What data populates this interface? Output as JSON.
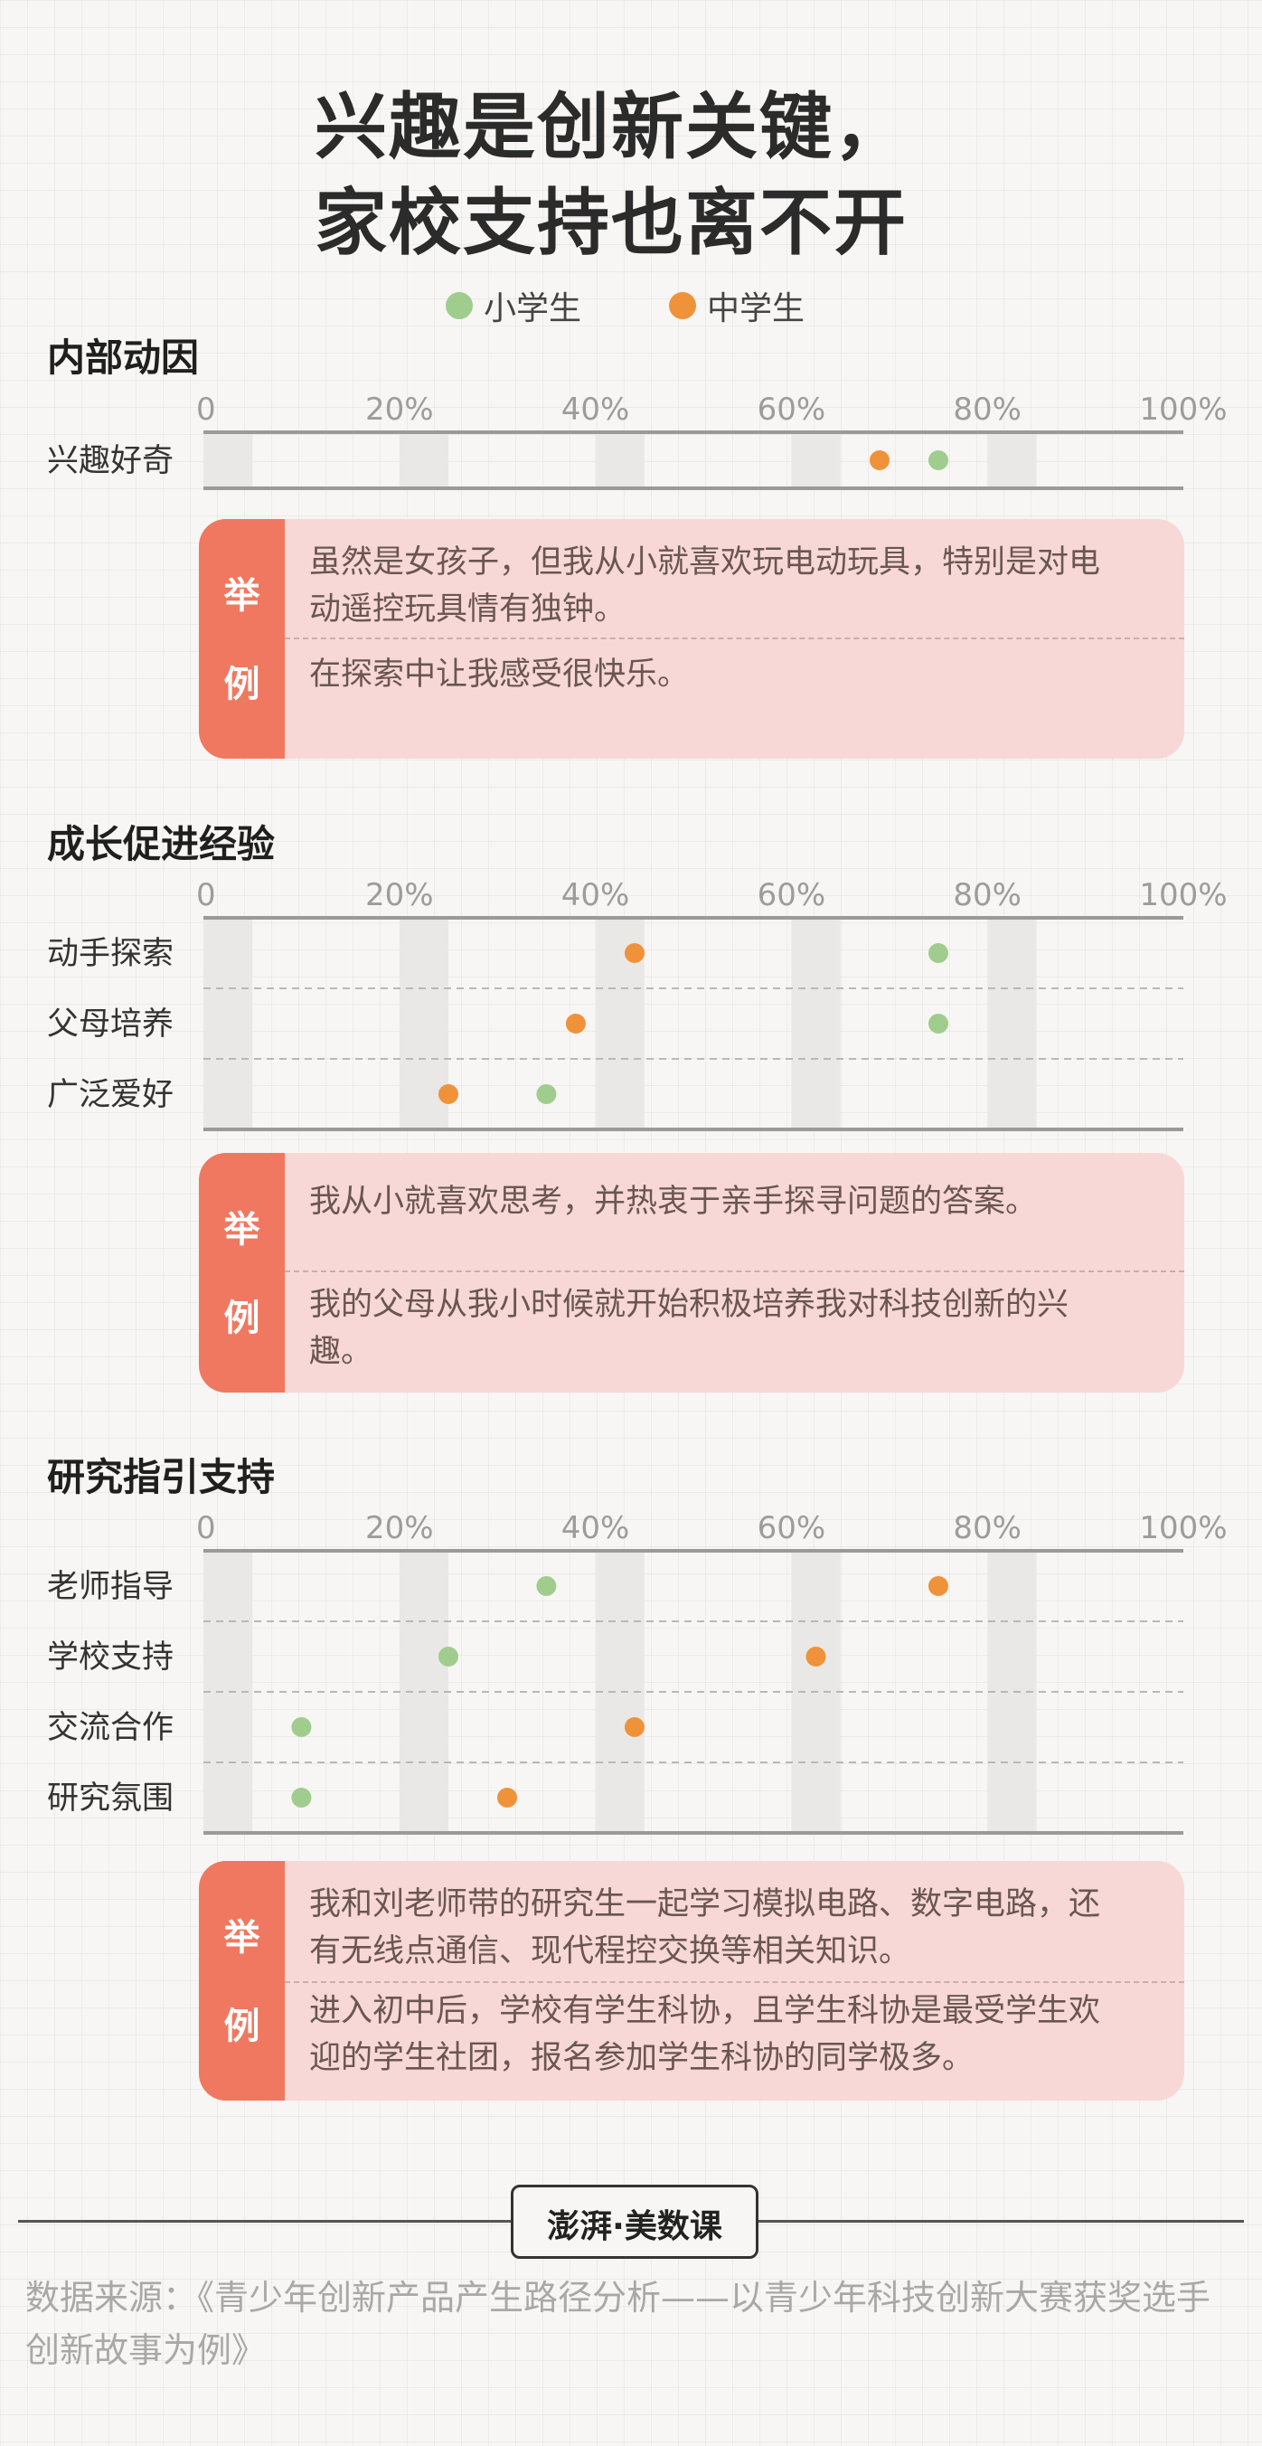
{
  "title": {
    "line1": "兴趣是创新关键，",
    "line2": "家校支持也离不开"
  },
  "legend": [
    {
      "label": "小学生",
      "color": "#a0cc8e"
    },
    {
      "label": "中学生",
      "color": "#f0923a"
    }
  ],
  "chart_data": [
    {
      "type": "scatter",
      "title": "内部动因",
      "x_ticks": [
        "0",
        "20%",
        "40%",
        "60%",
        "80%",
        "100%"
      ],
      "xlim": [
        0,
        100
      ],
      "categories": [
        "兴趣好奇"
      ],
      "series": [
        {
          "name": "小学生",
          "values": [
            75
          ]
        },
        {
          "name": "中学生",
          "values": [
            69
          ]
        }
      ]
    },
    {
      "type": "scatter",
      "title": "成长促进经验",
      "x_ticks": [
        "0",
        "20%",
        "40%",
        "60%",
        "80%",
        "100%"
      ],
      "xlim": [
        0,
        100
      ],
      "categories": [
        "动手探索",
        "父母培养",
        "广泛爱好"
      ],
      "series": [
        {
          "name": "小学生",
          "values": [
            75,
            75,
            35
          ]
        },
        {
          "name": "中学生",
          "values": [
            44,
            38,
            25
          ]
        }
      ]
    },
    {
      "type": "scatter",
      "title": "研究指引支持",
      "x_ticks": [
        "0",
        "20%",
        "40%",
        "60%",
        "80%",
        "100%"
      ],
      "xlim": [
        0,
        100
      ],
      "categories": [
        "老师指导",
        "学校支持",
        "交流合作",
        "研究氛围"
      ],
      "series": [
        {
          "name": "小学生",
          "values": [
            35,
            25,
            10,
            10
          ]
        },
        {
          "name": "中学生",
          "values": [
            75,
            62.5,
            44,
            31
          ]
        }
      ]
    }
  ],
  "examples": [
    {
      "tag": [
        "举",
        "例"
      ],
      "quotes": [
        "虽然是女孩子，但我从小就喜欢玩电动玩具，特别是对电动遥控玩具情有独钟。",
        "在探索中让我感受很快乐。"
      ]
    },
    {
      "tag": [
        "举",
        "例"
      ],
      "quotes": [
        "我从小就喜欢思考，并热衷于亲手探寻问题的答案。",
        "我的父母从我小时候就开始积极培养我对科技创新的兴趣。"
      ]
    },
    {
      "tag": [
        "举",
        "例"
      ],
      "quotes": [
        "我和刘老师带的研究生一起学习模拟电路、数字电路，还有无线点通信、现代程控交换等相关知识。",
        "进入初中后，学校有学生科协，且学生科协是最受学生欢迎的学生社团，报名参加学生科协的同学极多。"
      ]
    }
  ],
  "footer": {
    "logo": "澎湃·美数课",
    "source": "数据来源：《青少年创新产品产生路径分析——以青少年科技创新大赛获奖选手创新故事为例》"
  }
}
